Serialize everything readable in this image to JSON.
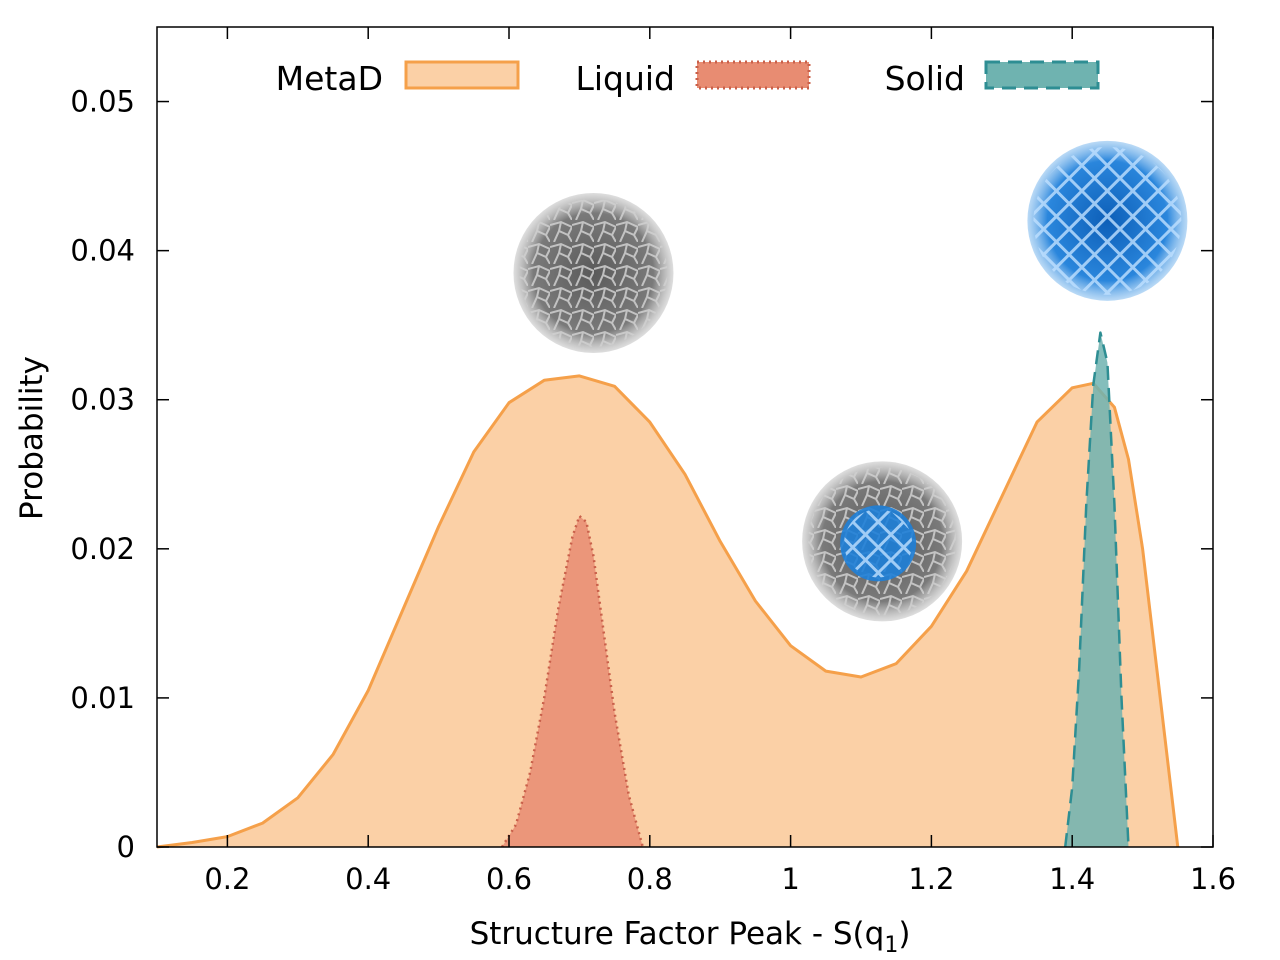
{
  "chart_data": {
    "type": "area",
    "xlabel": "Structure Factor Peak - S(q",
    "xlabel_subscript": "1",
    "xlabel_suffix": ")",
    "ylabel": "Probability",
    "xlim": [
      0.1,
      1.6
    ],
    "ylim": [
      0,
      0.055
    ],
    "xticks": [
      0.2,
      0.4,
      0.6,
      0.8,
      1,
      1.2,
      1.4,
      1.6
    ],
    "xtick_labels": [
      "0.2",
      "0.4",
      "0.6",
      "0.8",
      "1",
      "1.2",
      "1.4",
      "1.6"
    ],
    "yticks": [
      0,
      0.01,
      0.02,
      0.03,
      0.04,
      0.05
    ],
    "ytick_labels": [
      "0",
      "0.01",
      "0.02",
      "0.03",
      "0.04",
      "0.05"
    ],
    "grid": false,
    "legend_position": "top-center",
    "series": [
      {
        "name": "MetaD",
        "color": "#f5a04a",
        "fill": "#fbd0a6",
        "line_style": "solid",
        "x": [
          0.1,
          0.15,
          0.2,
          0.25,
          0.3,
          0.35,
          0.4,
          0.45,
          0.5,
          0.55,
          0.6,
          0.65,
          0.7,
          0.75,
          0.8,
          0.85,
          0.9,
          0.95,
          1.0,
          1.05,
          1.1,
          1.15,
          1.2,
          1.25,
          1.3,
          1.35,
          1.4,
          1.43,
          1.46,
          1.48,
          1.5,
          1.52,
          1.55
        ],
        "y": [
          0.0,
          0.0003,
          0.0007,
          0.0016,
          0.0033,
          0.0062,
          0.0105,
          0.016,
          0.0215,
          0.0265,
          0.0298,
          0.0313,
          0.0316,
          0.0309,
          0.0285,
          0.025,
          0.0205,
          0.0165,
          0.0135,
          0.0118,
          0.0114,
          0.0123,
          0.0148,
          0.0185,
          0.0235,
          0.0285,
          0.0308,
          0.0311,
          0.0295,
          0.026,
          0.02,
          0.012,
          0.0
        ]
      },
      {
        "name": "Liquid",
        "color": "#c9604a",
        "fill": "#e88c72",
        "line_style": "dotted",
        "x": [
          0.59,
          0.61,
          0.63,
          0.65,
          0.67,
          0.69,
          0.7,
          0.71,
          0.72,
          0.73,
          0.75,
          0.77,
          0.79
        ],
        "y": [
          0.0,
          0.0015,
          0.005,
          0.01,
          0.016,
          0.0208,
          0.0222,
          0.0218,
          0.0195,
          0.016,
          0.009,
          0.0035,
          0.0
        ]
      },
      {
        "name": "Solid",
        "color": "#2e8e93",
        "fill": "#6fb3b0",
        "line_style": "dashed",
        "x": [
          1.39,
          1.4,
          1.41,
          1.42,
          1.43,
          1.44,
          1.45,
          1.46,
          1.47,
          1.48
        ],
        "y": [
          0.0,
          0.004,
          0.012,
          0.023,
          0.031,
          0.0345,
          0.0325,
          0.023,
          0.01,
          0.0
        ]
      }
    ],
    "insets": [
      {
        "name": "liquid-structure-sphere",
        "x": 0.72,
        "y": 0.0385,
        "style": "amorphous",
        "color": "#6e6e6e"
      },
      {
        "name": "mixed-structure-sphere",
        "x": 1.13,
        "y": 0.0205,
        "style": "mixed",
        "color": "#6e6e6e",
        "accent": "#1e7fd8"
      },
      {
        "name": "solid-structure-sphere",
        "x": 1.45,
        "y": 0.042,
        "style": "crystal",
        "color": "#1e7fd8"
      }
    ]
  }
}
